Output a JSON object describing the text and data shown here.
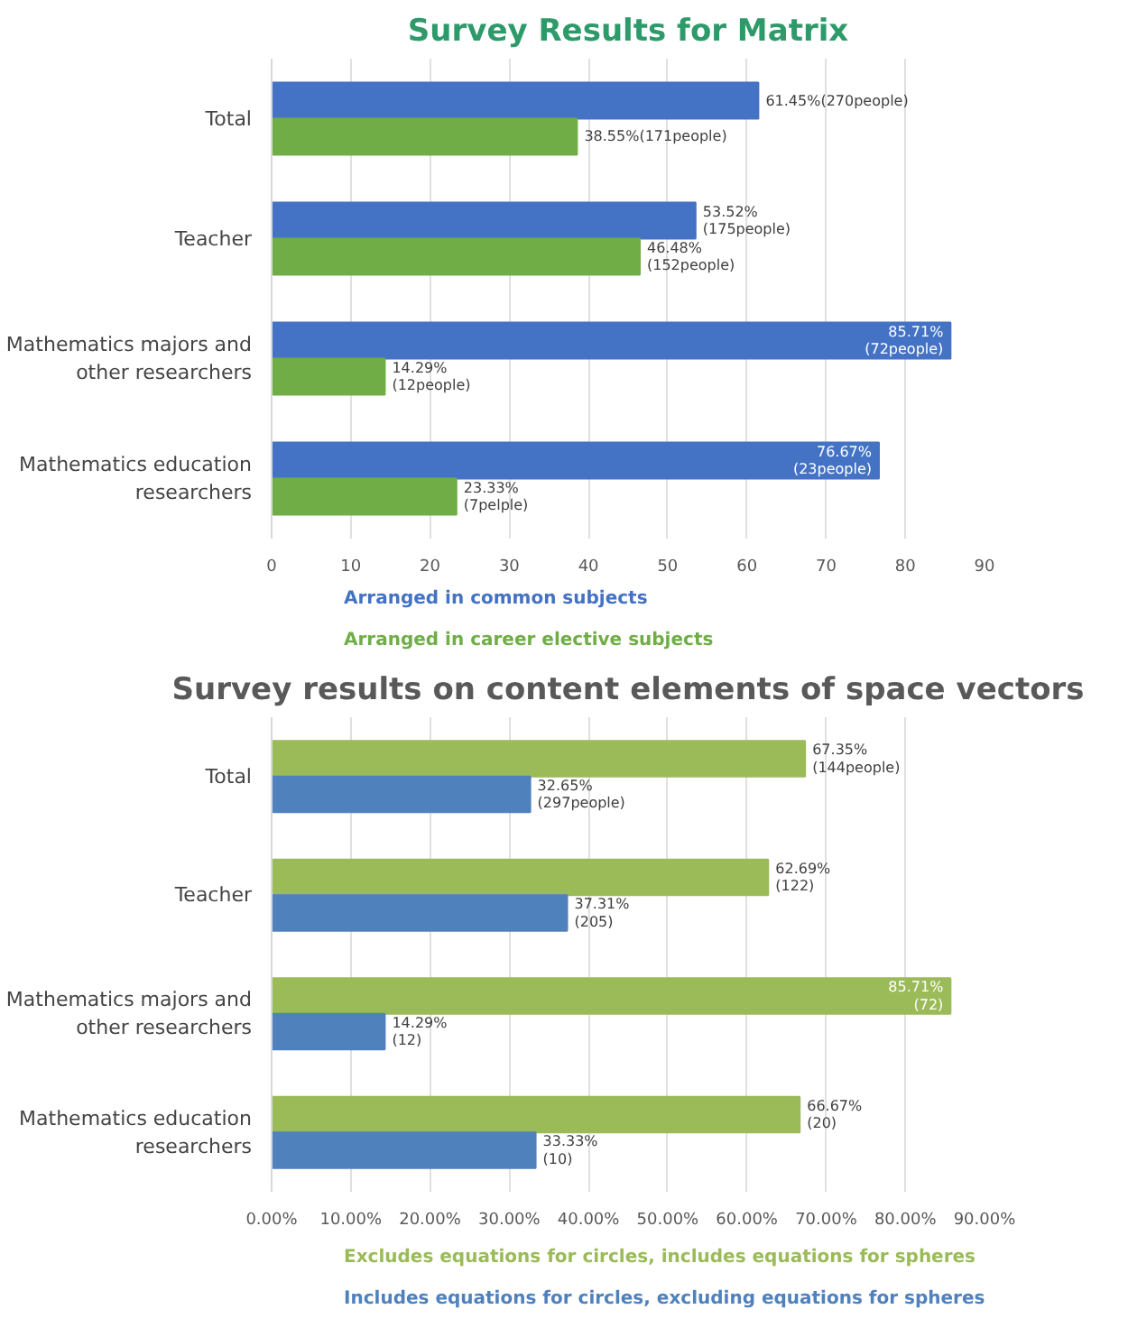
{
  "chart_data": [
    {
      "type": "bar",
      "orientation": "horizontal",
      "title": "Survey Results for Matrix",
      "categories": [
        "Total",
        "Teacher",
        "Mathematics majors and other researchers",
        "Mathematics education researchers"
      ],
      "series": [
        {
          "name": "Arranged in common subjects",
          "color": "#4472c4",
          "values": [
            61.45,
            53.52,
            85.71,
            76.67
          ],
          "value_labels": [
            "61.45%(270people)",
            "53.52%\n(175people)",
            "85.71%\n(72people)",
            "76.67%\n(23people)"
          ]
        },
        {
          "name": "Arranged in career elective subjects",
          "color": "#70ad47",
          "values": [
            38.55,
            46.48,
            14.29,
            23.33
          ],
          "value_labels": [
            "38.55%(171people)",
            "46.48%\n(152people)",
            "14.29%\n(12people)",
            "23.33%\n(7pelple)"
          ]
        }
      ],
      "xlim": [
        0,
        90
      ],
      "xticks": [
        0,
        10,
        20,
        30,
        40,
        50,
        60,
        70,
        80,
        90
      ],
      "grid": "x",
      "legend": "bottom"
    },
    {
      "type": "bar",
      "orientation": "horizontal",
      "title": "Survey results on content elements of space vectors",
      "categories": [
        "Total",
        "Teacher",
        "Mathematics majors and other researchers",
        "Mathematics education researchers"
      ],
      "series": [
        {
          "name": "Excludes equations for circles, includes equations for spheres",
          "color": "#9bbb59",
          "values": [
            67.35,
            62.69,
            85.71,
            66.67
          ],
          "value_labels": [
            "67.35%\n(144people)",
            "62.69%\n(122)",
            "85.71%\n(72)",
            "66.67%\n(20)"
          ]
        },
        {
          "name": "Includes equations for circles, excluding equations for spheres",
          "color": "#4f81bd",
          "values": [
            32.65,
            37.31,
            14.29,
            33.33
          ],
          "value_labels": [
            "32.65%\n(297people)",
            "37.31%\n(205)",
            "14.29%\n(12)",
            "33.33%\n(10)"
          ]
        }
      ],
      "xlim": [
        0,
        90
      ],
      "xticks": [
        {
          "value": 0,
          "label": "0.00%"
        },
        {
          "value": 10,
          "label": "10.00%"
        },
        {
          "value": 20,
          "label": "20.00%"
        },
        {
          "value": 30,
          "label": "30.00%"
        },
        {
          "value": 40,
          "label": "40.00%"
        },
        {
          "value": 50,
          "label": "50.00%"
        },
        {
          "value": 60,
          "label": "60.00%"
        },
        {
          "value": 70,
          "label": "70.00%"
        },
        {
          "value": 80,
          "label": "80.00%"
        },
        {
          "value": 90,
          "label": "90.00%"
        }
      ],
      "grid": "x",
      "legend": "bottom"
    }
  ]
}
